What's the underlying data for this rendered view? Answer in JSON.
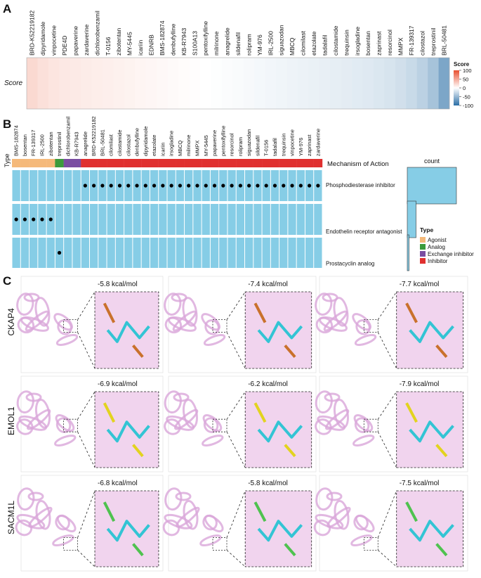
{
  "panel_a": {
    "label": "A",
    "row_label": "Score",
    "drugs": [
      "BRD-K52219182",
      "dipyridamole",
      "vinpocetine",
      "PDE4D",
      "papaverine",
      "zardaverine",
      "dichlorobenzamil",
      "T-0156",
      "zibotentan",
      "MY-5445",
      "icariin",
      "EDNRB",
      "BMS-182874",
      "denbufylline",
      "KB-R7943",
      "S100A13",
      "pentoxifylline",
      "milrinone",
      "anagrelide",
      "sildenafil",
      "rolipram",
      "YM-976",
      "IRL-2500",
      "siguazodan",
      "MBCQ",
      "cilomilast",
      "etazolate",
      "tadalafil",
      "cilostamide",
      "trequinsin",
      "irsogladine",
      "bosentan",
      "zaprinast",
      "resorcinol",
      "MMPX",
      "FR-139317",
      "cilostazol",
      "treprostinil",
      "BRL-50481"
    ],
    "scores": [
      22,
      18,
      15,
      13,
      12,
      11,
      10,
      9,
      8,
      7,
      6,
      5,
      4,
      3,
      2,
      1,
      0,
      -1,
      -2,
      -3,
      -4,
      -5,
      -6,
      -7,
      -8,
      -9,
      -10,
      -11,
      -12,
      -13,
      -14,
      -15,
      -17,
      -19,
      -22,
      -26,
      -32,
      -42,
      -62
    ],
    "colorbar": {
      "title": "Score",
      "lim": [
        -100,
        100
      ],
      "ticks": [
        100,
        50,
        0,
        -50,
        -100
      ],
      "colors": [
        "#2c6fa6",
        "#ffffff",
        "#e8502f"
      ]
    }
  },
  "panel_b": {
    "label": "B",
    "type_label": "Type",
    "mechanism_title": "Mechanism of Action",
    "columns": [
      "BMS-182874",
      "bosentan",
      "FR-139317",
      "IRL-2500",
      "zibotentan",
      "treprostinil",
      "dichlorobenzamil",
      "KB-R7943",
      "anagrelide",
      "BRD-K52219182",
      "BRL-50481",
      "cilomilast",
      "cilostamide",
      "cilostazol",
      "denbufylline",
      "dipyridamole",
      "etazolate",
      "icariin",
      "irsogladine",
      "MBCQ",
      "milrinone",
      "MMPX",
      "MY-5445",
      "papaverine",
      "pentoxifylline",
      "resorcinol",
      "rolipram",
      "siguazodan",
      "sildenafil",
      "T-0156",
      "tadalafil",
      "trequinsin",
      "vinpocetine",
      "YM-976",
      "zaprinast",
      "zardaverine"
    ],
    "column_types": [
      "Agonist",
      "Agonist",
      "Agonist",
      "Agonist",
      "Agonist",
      "Analog",
      "Exchange inhibitor",
      "Exchange inhibitor",
      "Inhibitor",
      "Inhibitor",
      "Inhibitor",
      "Inhibitor",
      "Inhibitor",
      "Inhibitor",
      "Inhibitor",
      "Inhibitor",
      "Inhibitor",
      "Inhibitor",
      "Inhibitor",
      "Inhibitor",
      "Inhibitor",
      "Inhibitor",
      "Inhibitor",
      "Inhibitor",
      "Inhibitor",
      "Inhibitor",
      "Inhibitor",
      "Inhibitor",
      "Inhibitor",
      "Inhibitor",
      "Inhibitor",
      "Inhibitor",
      "Inhibitor",
      "Inhibitor",
      "Inhibitor",
      "Inhibitor"
    ],
    "mechanisms": [
      "Phosphodiesterase inhibitor",
      "Endothelin receptor antagonist",
      "Prostacyclin analog"
    ],
    "membership": [
      [
        0,
        0,
        0,
        0,
        0,
        0,
        0,
        0,
        1,
        1,
        1,
        1,
        1,
        1,
        1,
        1,
        1,
        1,
        1,
        1,
        1,
        1,
        1,
        1,
        1,
        1,
        1,
        1,
        1,
        1,
        1,
        1,
        1,
        1,
        1,
        1
      ],
      [
        1,
        1,
        1,
        1,
        1,
        0,
        0,
        0,
        0,
        0,
        0,
        0,
        0,
        0,
        0,
        0,
        0,
        0,
        0,
        0,
        0,
        0,
        0,
        0,
        0,
        0,
        0,
        0,
        0,
        0,
        0,
        0,
        0,
        0,
        0,
        0
      ],
      [
        0,
        0,
        0,
        0,
        0,
        1,
        0,
        0,
        0,
        0,
        0,
        0,
        0,
        0,
        0,
        0,
        0,
        0,
        0,
        0,
        0,
        0,
        0,
        0,
        0,
        0,
        0,
        0,
        0,
        0,
        0,
        0,
        0,
        0,
        0,
        0
      ]
    ],
    "count_title": "count",
    "counts": [
      28,
      5,
      1
    ],
    "legend_title": "Type",
    "types": [
      {
        "name": "Agonist",
        "color": "#f5b97a"
      },
      {
        "name": "Analog",
        "color": "#3b9b3b"
      },
      {
        "name": "Exchange inhibitor",
        "color": "#7a4da1"
      },
      {
        "name": "Inhibitor",
        "color": "#e0302f"
      }
    ]
  },
  "panel_c": {
    "label": "C",
    "rows": [
      "CKAP4",
      "EMOL1",
      "SACM1L"
    ],
    "energies": [
      [
        "-5.8 kcal/mol",
        "-7.4 kcal/mol",
        "-7.7 kcal/mol"
      ],
      [
        "-6.9 kcal/mol",
        "-6.2 kcal/mol",
        "-7.9 kcal/mol"
      ],
      [
        "-6.8 kcal/mol",
        "-5.8 kcal/mol",
        "-7.5 kcal/mol"
      ]
    ]
  }
}
